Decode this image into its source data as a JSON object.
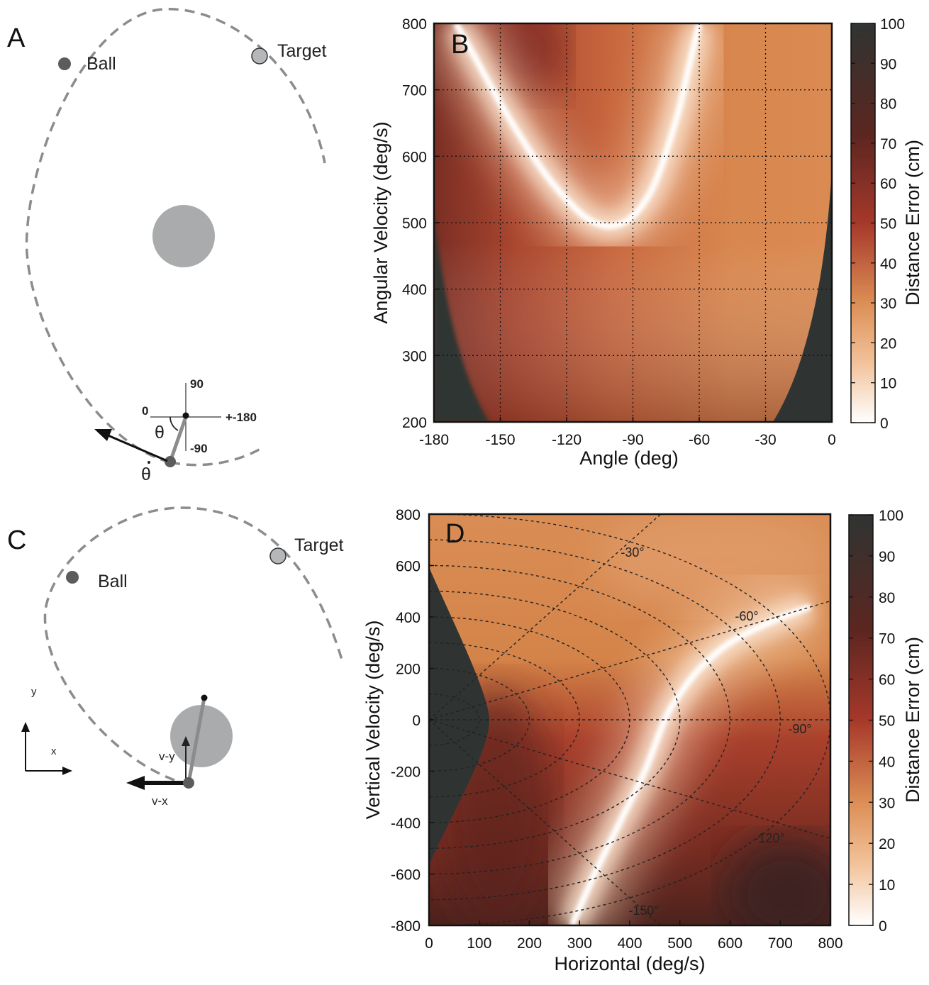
{
  "colors": {
    "white": "#ffffff",
    "light": "#f2c29a",
    "orange": "#dc8e55",
    "red": "#a6382a",
    "dark_red": "#5c2620",
    "black": "#2f3432",
    "orbit": "#8c8c8c",
    "planet": "#a9abad",
    "ball": "#5a5c5e",
    "target": "#b5b7b9"
  },
  "panel_a": {
    "letter": "A",
    "ball_label": "Ball",
    "target_label": "Target",
    "axis_top": "90",
    "axis_left": "0",
    "axis_right": "+-180",
    "axis_bottom": "-90",
    "theta": "θ",
    "theta_dot": "θ"
  },
  "panel_c": {
    "letter": "C",
    "ball_label": "Ball",
    "target_label": "Target",
    "vy": "v-y",
    "vx": "v-x",
    "axis_y": "y",
    "axis_x": "x"
  },
  "chart_data": [
    {
      "panel": "B",
      "type": "heatmap",
      "xlabel": "Angle (deg)",
      "ylabel": "Angular Velocity (deg/s)",
      "x_ticks": [
        -180,
        -150,
        -120,
        -90,
        -60,
        -30,
        0
      ],
      "y_ticks": [
        200,
        300,
        400,
        500,
        600,
        700,
        800
      ],
      "xlim": [
        -180,
        0
      ],
      "ylim": [
        200,
        800
      ],
      "grid": true,
      "minimum_error_valley": {
        "x": [
          -170,
          -160,
          -150,
          -140,
          -130,
          -120,
          -110,
          -100,
          -90,
          -80,
          -70,
          -65,
          -60
        ],
        "y": [
          800,
          740,
          680,
          625,
          575,
          535,
          505,
          495,
          510,
          560,
          660,
          730,
          800
        ]
      },
      "colorbar": {
        "label": "Distance Error (cm)",
        "ticks": [
          0,
          10,
          20,
          30,
          40,
          50,
          60,
          70,
          80,
          90,
          100
        ],
        "range": [
          0,
          100
        ]
      }
    },
    {
      "panel": "D",
      "type": "heatmap",
      "xlabel": "Horizontal (deg/s)",
      "ylabel": "Vertical Velocity (deg/s)",
      "x_ticks": [
        0,
        100,
        200,
        300,
        400,
        500,
        600,
        700,
        800
      ],
      "y_ticks": [
        -800,
        -600,
        -400,
        -200,
        0,
        200,
        400,
        600,
        800
      ],
      "xlim": [
        0,
        800
      ],
      "ylim": [
        -800,
        800
      ],
      "minimum_error_valley": {
        "x": [
          285,
          330,
          380,
          430,
          470,
          500,
          540,
          600,
          680,
          760
        ],
        "y": [
          -800,
          -600,
          -400,
          -200,
          0,
          100,
          200,
          300,
          380,
          440
        ]
      },
      "angle_labels": [
        "-30°",
        "-60°",
        "-90°",
        "-120°",
        "-150°"
      ],
      "colorbar": {
        "label": "Distance Error (cm)",
        "ticks": [
          0,
          10,
          20,
          30,
          40,
          50,
          60,
          70,
          80,
          90,
          100
        ],
        "range": [
          0,
          100
        ]
      }
    }
  ]
}
